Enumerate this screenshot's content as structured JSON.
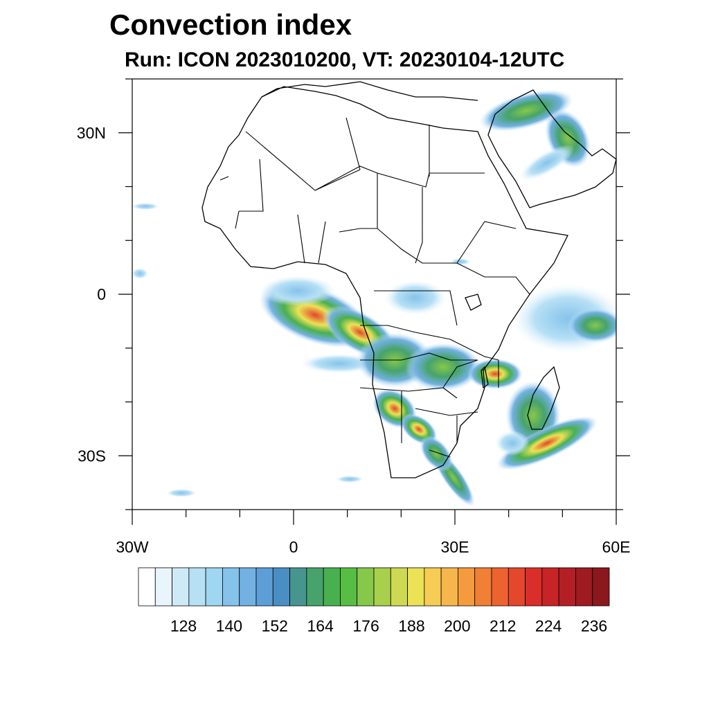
{
  "title": "Convection index",
  "subtitle": "Run: ICON 2023010200,  VT: 20230104-12UTC",
  "chart_data": {
    "type": "filled-contour map",
    "x_axis": {
      "range": [
        -30,
        60
      ],
      "major_ticks": [
        -30,
        0,
        30,
        60
      ],
      "labels": [
        "30W",
        "0",
        "30E",
        "60E"
      ]
    },
    "y_axis": {
      "range": [
        -40,
        40
      ],
      "major_ticks": [
        -30,
        0,
        30
      ],
      "labels": [
        "30S",
        "0",
        "30N"
      ]
    },
    "colorbar": {
      "levels": [
        122,
        125,
        128,
        131,
        134,
        137,
        140,
        143,
        146,
        149,
        152,
        155,
        158,
        161,
        164,
        167,
        170,
        173,
        176,
        179,
        182,
        185,
        188,
        191,
        194,
        197,
        200,
        203,
        206,
        209,
        212,
        215,
        218,
        221,
        224,
        227,
        230,
        233,
        236
      ],
      "labeled_values": [
        128,
        140,
        152,
        164,
        176,
        188,
        200,
        212,
        224,
        236
      ],
      "labels": [
        "128",
        "140",
        "152",
        "164",
        "176",
        "188",
        "200",
        "212",
        "224",
        "236"
      ],
      "colors": [
        "#ffffff",
        "#e8f5fc",
        "#cfeaf7",
        "#b7e0f5",
        "#9fd6f2",
        "#86c3eb",
        "#72b1e2",
        "#5d9ed6",
        "#4a8fc4",
        "#46968f",
        "#47a36b",
        "#49b04f",
        "#58bd45",
        "#86c84a",
        "#a9d04d",
        "#cdd952",
        "#ebe255",
        "#f7cc55",
        "#f7b64b",
        "#f49b40",
        "#f17f35",
        "#ec6330",
        "#e3472c",
        "#d92e2a",
        "#c72427",
        "#b31f24",
        "#9e1b20",
        "#8a181c"
      ]
    }
  }
}
